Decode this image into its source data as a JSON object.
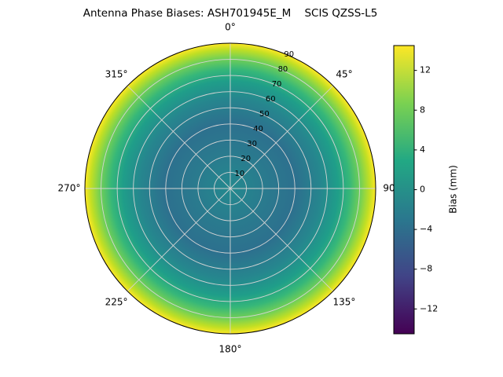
{
  "chart_data": {
    "type": "heatmap",
    "projection": "polar",
    "title": "Antenna Phase Biases: ASH701945E_M    SCIS QZSS-L5",
    "antenna": "ASH701945E_M",
    "calibration": "SCIS",
    "signal": "QZSS-L5",
    "angular_tick_labels": [
      "0°",
      "45°",
      "90°",
      "135°",
      "180°",
      "225°",
      "270°",
      "315°"
    ],
    "angular_tick_degrees": [
      0,
      45,
      90,
      135,
      180,
      225,
      270,
      315
    ],
    "radial_tick_labels": [
      "10",
      "20",
      "30",
      "40",
      "50",
      "60",
      "70",
      "80",
      "90"
    ],
    "radial_ticks": [
      10,
      20,
      30,
      40,
      50,
      60,
      70,
      80,
      90
    ],
    "radial_max": 90,
    "radial_label_azimuth_deg": 22.5,
    "grid_color": "#d4d4d4",
    "background": "#ffffff",
    "colorbar": {
      "label": "Bias (mm)",
      "tick_values": [
        12,
        8,
        4,
        0,
        -4,
        -8,
        -12
      ],
      "tick_labels": [
        "12",
        "8",
        "4",
        "0",
        "−4",
        "−8",
        "−12"
      ],
      "vmin": -14.5,
      "vmax": 14.5,
      "colormap": "viridis",
      "gradient": [
        {
          "t": 0.0,
          "color": "#440154"
        },
        {
          "t": 0.2,
          "color": "#414487"
        },
        {
          "t": 0.4,
          "color": "#2a788e"
        },
        {
          "t": 0.6,
          "color": "#22a884"
        },
        {
          "t": 0.8,
          "color": "#7ad151"
        },
        {
          "t": 1.0,
          "color": "#fde725"
        }
      ]
    },
    "radial_profile": {
      "description": "Bias (mm) vs zenith angle (deg); pattern is approximately azimuthally symmetric",
      "zenith_deg": [
        0,
        10,
        20,
        30,
        40,
        50,
        60,
        70,
        80,
        85,
        90
      ],
      "bias_mm": [
        0,
        -0.5,
        -1,
        -1.5,
        -2,
        -2,
        -1,
        1,
        5,
        9,
        14
      ]
    },
    "fill_gradient": [
      {
        "offset": 0.0,
        "color": "#23898e"
      },
      {
        "offset": 0.25,
        "color": "#2a7a8e"
      },
      {
        "offset": 0.45,
        "color": "#2d708e"
      },
      {
        "offset": 0.62,
        "color": "#26868e"
      },
      {
        "offset": 0.74,
        "color": "#1f9e89"
      },
      {
        "offset": 0.82,
        "color": "#36b779"
      },
      {
        "offset": 0.9,
        "color": "#76d153"
      },
      {
        "offset": 0.96,
        "color": "#c2df23"
      },
      {
        "offset": 1.0,
        "color": "#fde725"
      }
    ]
  }
}
